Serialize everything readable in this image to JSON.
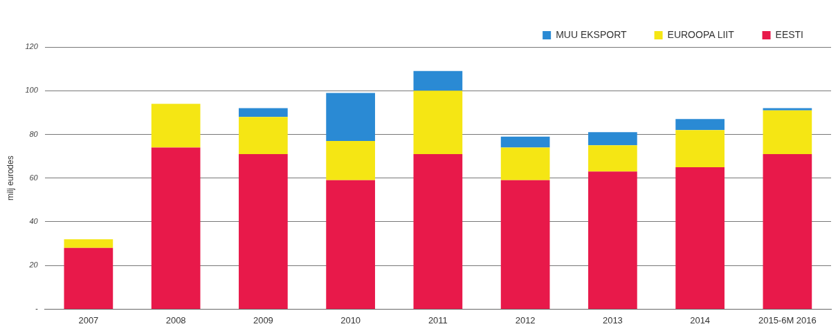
{
  "chart_data": {
    "type": "bar",
    "stacked": true,
    "ylabel": "milj eurodes",
    "categories": [
      "2007",
      "2008",
      "2009",
      "2010",
      "2011",
      "2012",
      "2013",
      "2014",
      "2015-6M 2016"
    ],
    "series": [
      {
        "name": "EESTI",
        "color": "#e8194a",
        "values": [
          28,
          74,
          71,
          59,
          71,
          59,
          63,
          65,
          71
        ]
      },
      {
        "name": "EUROOPA LIIT",
        "color": "#f5e614",
        "values": [
          4,
          20,
          17,
          18,
          29,
          15,
          12,
          17,
          20
        ]
      },
      {
        "name": "MUU EKSPORT",
        "color": "#2a8ad4",
        "values": [
          null,
          null,
          4,
          22,
          9,
          5,
          6,
          5,
          1
        ]
      }
    ],
    "ylim": [
      0,
      120
    ],
    "yticks": [
      {
        "value": 0,
        "label": "-"
      },
      20,
      40,
      60,
      80,
      100,
      120
    ],
    "grid": "y",
    "legend": "top right"
  }
}
